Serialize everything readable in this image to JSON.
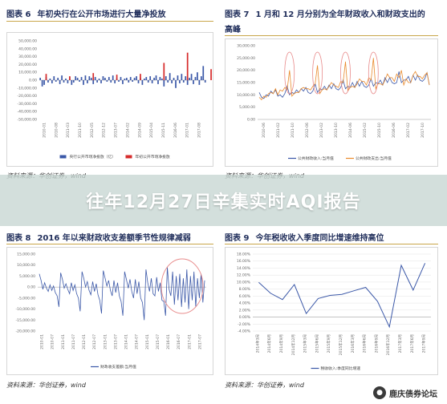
{
  "banner": {
    "title": "往年12月27日辛集实时AQI报告"
  },
  "watermark": {
    "text": "鹿庆债券论坛",
    "icon": "wechat-icon"
  },
  "colors": {
    "navy": "#3b58a8",
    "red": "#d62b2b",
    "orange": "#e98a2c",
    "circle": "#e88b8b",
    "rule": "#c9a64a"
  },
  "panels": [
    {
      "label": "图表 6",
      "title": "年初央行在公开市场进行大量净投放",
      "source": "资料来源：华创证券，wind"
    },
    {
      "label": "图表 7",
      "title": "1 月和 12 月分别为全年财政收入和财政支出的",
      "title2": "高峰",
      "source": "资料来源：华创证券，wind"
    },
    {
      "label": "图表 8",
      "title": "2016 年以来财政收支差额季节性规律减弱",
      "source": "资料来源：华创证券，wind"
    },
    {
      "label": "图表 9",
      "title": "今年税收收入季度同比增速维持高位",
      "source": "资料来源：华创证券，wind"
    }
  ],
  "chart_data": [
    {
      "type": "bar",
      "yticks": [
        "50,000.00",
        "40,000.00",
        "30,000.00",
        "20,000.00",
        "10,000.00",
        "0.00",
        "-10,000.00",
        "-20,000.00",
        "-30,000.00",
        "-40,000.00",
        "-50,000.00"
      ],
      "ylim": [
        -50000,
        50000
      ],
      "xticks": [
        "2010-01",
        "2010-08",
        "2011-03",
        "2011-10",
        "2012-05",
        "2012-12",
        "2013-07",
        "2014-02",
        "2014-09",
        "2015-04",
        "2015-11",
        "2016-06",
        "2017-01",
        "2017-08"
      ],
      "series": [
        {
          "name": "央行公开市场净投放（亿）",
          "color": "navy",
          "values": [
            3000,
            -8000,
            -6000,
            4000,
            -3000,
            2000,
            -4000,
            5000,
            -2000,
            3000,
            -5000,
            6000,
            -3000,
            2000,
            -4000,
            4000,
            -6000,
            -3000,
            5000,
            3000,
            -2000,
            4000,
            -6000,
            6000,
            -4000,
            5000,
            3000,
            -5000,
            4000,
            -3000,
            2000,
            -4000,
            5000,
            3000,
            -2000,
            4000,
            -3000,
            6000,
            -4000,
            3000,
            -2000,
            4000,
            -5000,
            2000,
            3000,
            -3000,
            4000,
            -2000,
            3000,
            5000,
            -4000,
            3000,
            -6000,
            2000,
            4000,
            -3000,
            5000,
            -4000,
            3000,
            6000,
            -5000,
            4000,
            2000,
            -8000,
            5000,
            -3000,
            9000,
            -4000,
            3000,
            -10000,
            6000,
            -4000,
            8000,
            -3000,
            5000,
            -6000,
            3000,
            8000,
            -5000,
            4000,
            10000,
            -6000,
            5000,
            18000,
            -3000
          ]
        },
        {
          "name": "年初公开市场净投放",
          "color": "red",
          "index": [
            3,
            15,
            27,
            39,
            51,
            63,
            75,
            87
          ],
          "values": [
            8000,
            5000,
            9000,
            7000,
            8000,
            22000,
            35000,
            14000
          ]
        }
      ]
    },
    {
      "type": "line",
      "yticks": [
        "30,000.00",
        "25,000.00",
        "20,000.00",
        "15,000.00",
        "10,000.00",
        "5,000.00",
        "0.00"
      ],
      "ylim": [
        0,
        30000
      ],
      "xticks": [
        "2010-06",
        "2011-02",
        "2011-10",
        "2012-06",
        "2013-02",
        "2013-10",
        "2014-06",
        "2015-02",
        "2015-10",
        "2016-06",
        "2017-02",
        "2017-10"
      ],
      "series": [
        {
          "name": "公共财政收入:当月值",
          "color": "navy",
          "values": [
            11000,
            9000,
            8500,
            10000,
            9500,
            11500,
            10500,
            12000,
            9500,
            10000,
            9000,
            10500,
            13500,
            10000,
            11000,
            10500,
            12000,
            11000,
            12500,
            11500,
            13000,
            11000,
            10500,
            11500,
            14500,
            11000,
            12500,
            12000,
            13500,
            12000,
            14000,
            12500,
            14500,
            12500,
            12000,
            13000,
            16000,
            12500,
            13500,
            13000,
            15000,
            13000,
            15500,
            13500,
            15500,
            13500,
            13000,
            14000,
            16500,
            13500,
            15000,
            14500,
            16000,
            14000,
            17000,
            15000,
            17000,
            15000,
            14500,
            15000,
            19500,
            15000,
            16000,
            16000,
            17500,
            15000,
            18000,
            16000,
            18000,
            16000,
            15500,
            16500,
            19000,
            14000
          ]
        },
        {
          "name": "公共财政支出:当月值",
          "color": "orange",
          "values": [
            9000,
            8000,
            9500,
            9000,
            10500,
            11000,
            10500,
            12500,
            10000,
            12000,
            11500,
            13000,
            12000,
            20000,
            9500,
            10500,
            11000,
            11000,
            12500,
            13000,
            12500,
            12500,
            12000,
            13500,
            14500,
            22000,
            10500,
            12000,
            12500,
            12000,
            13500,
            15000,
            14000,
            13500,
            13000,
            15500,
            15000,
            23500,
            11500,
            13000,
            13500,
            13000,
            14500,
            16500,
            15500,
            15500,
            14000,
            17000,
            16000,
            25000,
            12500,
            14500,
            14500,
            14000,
            16000,
            18500,
            17000,
            17000,
            15500,
            18500,
            17000,
            20000,
            14000,
            16500,
            15000,
            15000,
            18000,
            19500,
            17500,
            17500,
            16500,
            18000,
            19000,
            14000
          ]
        }
      ],
      "highlights": [
        "2011-12",
        "2012-12",
        "2013-12",
        "2014-12"
      ]
    },
    {
      "type": "line",
      "yticks": [
        "15,000.00",
        "10,000.00",
        "5,000.00",
        "0.00",
        "-5,000.00",
        "-10,000.00",
        "-15,000.00",
        "-20,000.00"
      ],
      "ylim": [
        -20000,
        15000
      ],
      "xticks": [
        "2010-01",
        "2010-07",
        "2011-01",
        "2011-07",
        "2012-01",
        "2012-07",
        "2013-01",
        "2013-07",
        "2014-01",
        "2014-07",
        "2015-01",
        "2015-07",
        "2016-01",
        "2016-07",
        "2017-01",
        "2017-07"
      ],
      "series": [
        {
          "name": "财政收支差额:当月值",
          "color": "navy",
          "values": [
            6000,
            3000,
            -1000,
            2000,
            -500,
            -2000,
            1000,
            -1500,
            500,
            -2500,
            -4000,
            -9000,
            6500,
            3500,
            -500,
            1500,
            -1000,
            -3000,
            2000,
            -1500,
            1000,
            -3000,
            -5000,
            -11000,
            7000,
            4000,
            0,
            2500,
            -1500,
            -3500,
            2500,
            -2000,
            1500,
            -3500,
            -6000,
            -12000,
            7500,
            4000,
            500,
            3000,
            -1500,
            -4000,
            3000,
            -2500,
            2000,
            -4000,
            -6500,
            -13000,
            7000,
            3500,
            -500,
            3500,
            -2000,
            -5000,
            3500,
            -3000,
            2500,
            -5000,
            -7000,
            -15000,
            8000,
            2000,
            -2000,
            4000,
            -3000,
            -4000,
            4500,
            -2000,
            2000,
            -6000,
            -6500,
            -13000,
            9000,
            -1000,
            -4000,
            7000,
            -8000,
            5000,
            -6000,
            6000,
            -9000,
            4000,
            -7000,
            8000,
            -10000,
            5000,
            -6000,
            7000,
            -9000,
            4000,
            -5000,
            6000,
            -7000,
            3000
          ]
        }
      ],
      "highlight": "2016-01 ~ 2017-07"
    },
    {
      "type": "line",
      "yticks": [
        "18.00%",
        "16.00%",
        "14.00%",
        "12.00%",
        "10.00%",
        "8.00%",
        "6.00%",
        "4.00%",
        "2.00%",
        "0.00%",
        "-2.00%",
        "-4.00%"
      ],
      "ylim": [
        -4,
        18
      ],
      "xticks": [
        "2014年3月",
        "2014年6月",
        "2014年9月",
        "2014年12月",
        "2015年3月",
        "2015年6月",
        "2015年9月",
        "2015年12月",
        "2016年3月",
        "2016年6月",
        "2016年9月",
        "2016年12月",
        "2017年3月",
        "2017年6月",
        "2017年9月"
      ],
      "series": [
        {
          "name": "税收收入:季度同比增速",
          "color": "navy",
          "values": [
            9.9,
            6.8,
            5.0,
            9.3,
            1.0,
            5.3,
            6.2,
            6.5,
            7.5,
            8.5,
            4.5,
            -2.8,
            14.8,
            7.7,
            15.4
          ]
        }
      ]
    }
  ]
}
